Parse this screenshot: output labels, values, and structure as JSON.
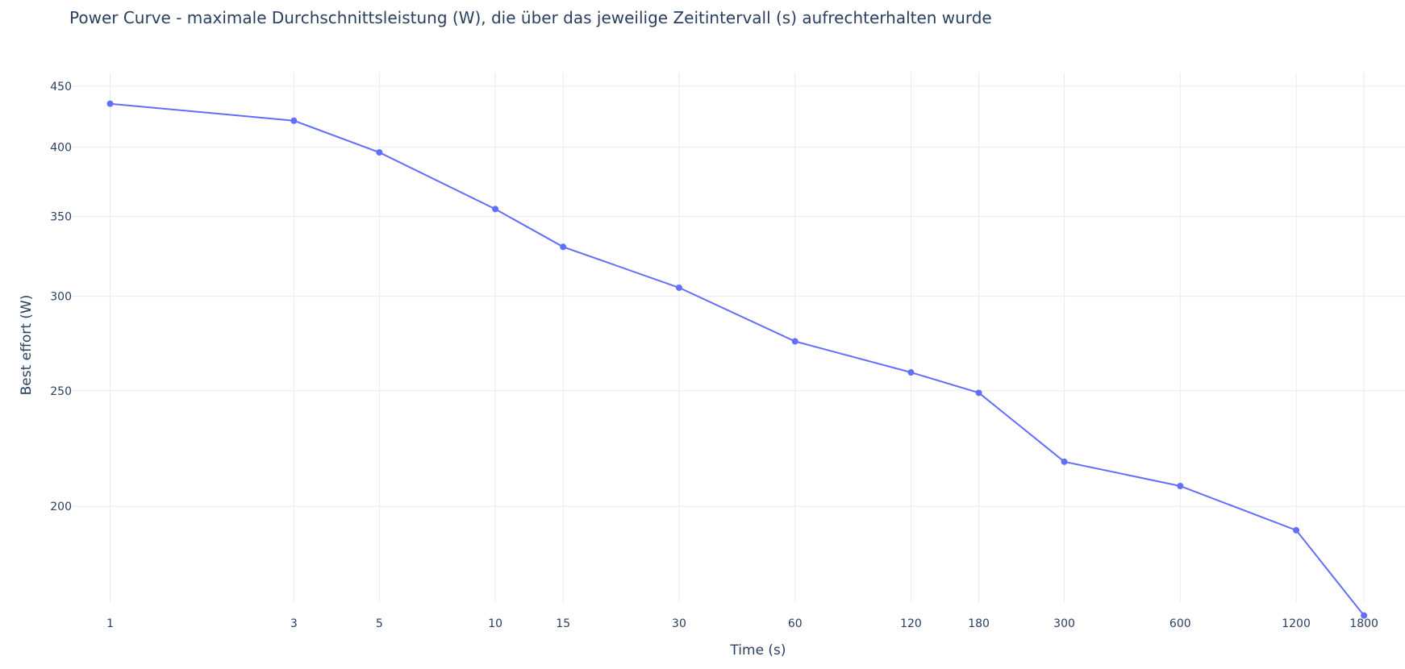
{
  "chart_data": {
    "type": "line",
    "title": "Power Curve - maximale Durchschnittsleistung (W), die über das jeweilige Zeitintervall (s) aufrechterhalten wurde",
    "xlabel": "Time (s)",
    "ylabel": "Best effort (W)",
    "x_scale": "log",
    "y_scale": "log",
    "x_ticks": [
      1,
      3,
      5,
      10,
      15,
      30,
      60,
      120,
      180,
      300,
      600,
      1200,
      1800
    ],
    "y_ticks": [
      200,
      250,
      300,
      350,
      400,
      450
    ],
    "xlim": [
      0.78,
      2300
    ],
    "ylim": [
      166,
      462
    ],
    "grid": true,
    "legend": "none",
    "series": [
      {
        "color": "#636efa",
        "x": [
          1,
          3,
          5,
          10,
          15,
          30,
          60,
          120,
          180,
          300,
          600,
          1200,
          1800
        ],
        "y": [
          435,
          421,
          396,
          355,
          330,
          305,
          275,
          259,
          249,
          218,
          208,
          191,
          162
        ]
      }
    ]
  }
}
